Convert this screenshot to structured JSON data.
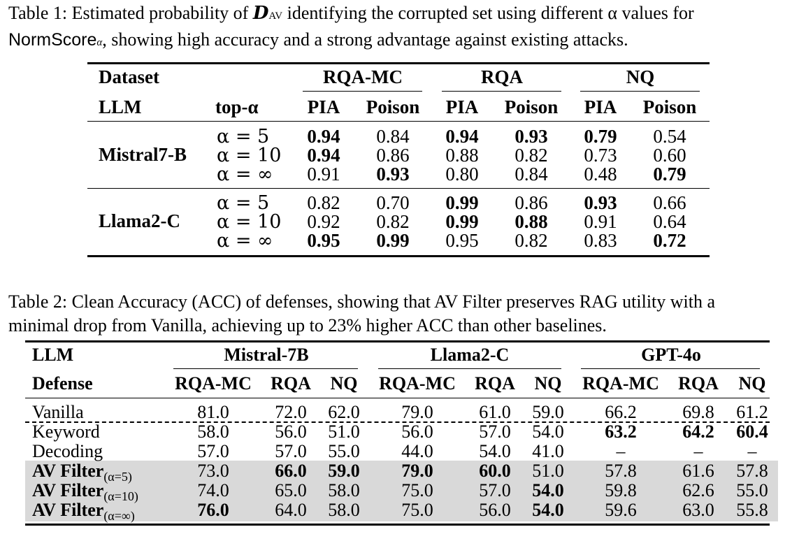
{
  "table1": {
    "caption_label": "Table 1:",
    "caption_pre": " Estimated probability of ",
    "caption_dav": "D",
    "caption_dav_sub": "AV",
    "caption_mid": " identifying the corrupted set using different α values for",
    "caption_normscore": "NormScore",
    "caption_normscore_sub": "α",
    "caption_post": ", showing high accuracy and a strong advantage against existing attacks.",
    "header": {
      "dataset": "Dataset",
      "llm": "LLM",
      "topk": "top-α",
      "groups": [
        "RQA-MC",
        "RQA",
        "NQ"
      ],
      "sub": [
        "PIA",
        "Poison",
        "PIA",
        "Poison",
        "PIA",
        "Poison"
      ]
    },
    "blocks": [
      {
        "model": "Mistral7-B",
        "rows": [
          {
            "alpha": "α = 5",
            "values": [
              "0.94",
              "0.84",
              "0.94",
              "0.93",
              "0.79",
              "0.54"
            ],
            "bold": [
              true,
              false,
              true,
              true,
              true,
              false
            ]
          },
          {
            "alpha": "α = 10",
            "values": [
              "0.94",
              "0.86",
              "0.88",
              "0.82",
              "0.73",
              "0.60"
            ],
            "bold": [
              true,
              false,
              false,
              false,
              false,
              false
            ]
          },
          {
            "alpha": "α = ∞",
            "values": [
              "0.91",
              "0.93",
              "0.80",
              "0.84",
              "0.48",
              "0.79"
            ],
            "bold": [
              false,
              true,
              false,
              false,
              false,
              true
            ]
          }
        ]
      },
      {
        "model": "Llama2-C",
        "rows": [
          {
            "alpha": "α = 5",
            "values": [
              "0.82",
              "0.70",
              "0.99",
              "0.86",
              "0.93",
              "0.66"
            ],
            "bold": [
              false,
              false,
              true,
              false,
              true,
              false
            ]
          },
          {
            "alpha": "α = 10",
            "values": [
              "0.92",
              "0.82",
              "0.99",
              "0.88",
              "0.91",
              "0.64"
            ],
            "bold": [
              false,
              false,
              true,
              true,
              false,
              false
            ]
          },
          {
            "alpha": "α = ∞",
            "values": [
              "0.95",
              "0.99",
              "0.95",
              "0.82",
              "0.83",
              "0.72"
            ],
            "bold": [
              true,
              true,
              false,
              false,
              false,
              true
            ]
          }
        ]
      }
    ]
  },
  "table2": {
    "caption_line1": "Table 2: Clean Accuracy (ACC) of defenses, showing that AV Filter preserves RAG utility with a",
    "caption_line2": "minimal drop from Vanilla, achieving up to 23% higher ACC than other baselines.",
    "header": {
      "llm": "LLM",
      "defense": "Defense",
      "groups": [
        "Mistral-7B",
        "Llama2-C",
        "GPT-4o"
      ],
      "sub": [
        "RQA-MC",
        "RQA",
        "NQ",
        "RQA-MC",
        "RQA",
        "NQ",
        "RQA-MC",
        "RQA",
        "NQ"
      ]
    },
    "rows": [
      {
        "name": "Vanilla",
        "sub": "",
        "values": [
          "81.0",
          "72.0",
          "62.0",
          "79.0",
          "61.0",
          "59.0",
          "66.2",
          "69.8",
          "61.2"
        ],
        "bold": [
          false,
          false,
          false,
          false,
          false,
          false,
          false,
          false,
          false
        ]
      },
      {
        "name": "Keyword",
        "sub": "",
        "values": [
          "58.0",
          "56.0",
          "51.0",
          "56.0",
          "57.0",
          "54.0",
          "63.2",
          "64.2",
          "60.4"
        ],
        "bold": [
          false,
          false,
          false,
          false,
          false,
          false,
          true,
          true,
          true
        ]
      },
      {
        "name": "Decoding",
        "sub": "",
        "values": [
          "57.0",
          "57.0",
          "55.0",
          "44.0",
          "54.0",
          "41.0",
          "–",
          "–",
          "–"
        ],
        "bold": [
          false,
          false,
          false,
          false,
          false,
          false,
          false,
          false,
          false
        ]
      },
      {
        "name": "AV Filter",
        "sub": "(α=5)",
        "values": [
          "73.0",
          "66.0",
          "59.0",
          "79.0",
          "60.0",
          "51.0",
          "57.8",
          "61.6",
          "57.8"
        ],
        "bold": [
          false,
          true,
          true,
          true,
          true,
          false,
          false,
          false,
          false
        ]
      },
      {
        "name": "AV Filter",
        "sub": "(α=10)",
        "values": [
          "74.0",
          "65.0",
          "58.0",
          "75.0",
          "57.0",
          "54.0",
          "59.8",
          "62.6",
          "55.0"
        ],
        "bold": [
          false,
          false,
          false,
          false,
          false,
          true,
          false,
          false,
          false
        ]
      },
      {
        "name": "AV Filter",
        "sub": "(α=∞)",
        "values": [
          "76.0",
          "64.0",
          "58.0",
          "75.0",
          "56.0",
          "54.0",
          "59.6",
          "63.0",
          "55.8"
        ],
        "bold": [
          true,
          false,
          false,
          false,
          false,
          true,
          false,
          false,
          false
        ]
      }
    ]
  }
}
